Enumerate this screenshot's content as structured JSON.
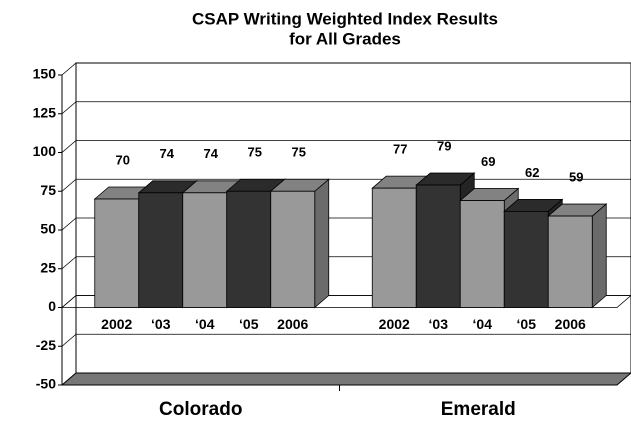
{
  "chart_data": {
    "type": "bar3d",
    "title": [
      "CSAP Writing Weighted Index Results",
      "for All Grades"
    ],
    "groups": [
      {
        "name": "Colorado",
        "categories": [
          "2002",
          "‘03",
          "‘04",
          "‘05",
          "2006"
        ],
        "values": [
          70,
          74,
          74,
          75,
          75
        ],
        "colors": [
          "#999999",
          "#333333",
          "#999999",
          "#333333",
          "#999999"
        ]
      },
      {
        "name": "Emerald",
        "categories": [
          "2002",
          "‘03",
          "‘04",
          "‘05",
          "2006"
        ],
        "values": [
          77,
          79,
          69,
          62,
          59
        ],
        "colors": [
          "#999999",
          "#333333",
          "#999999",
          "#333333",
          "#999999"
        ]
      }
    ],
    "ylim": [
      -50,
      150
    ],
    "yticks": [
      -50,
      -25,
      0,
      25,
      50,
      75,
      100,
      125,
      150
    ],
    "grid": true
  }
}
